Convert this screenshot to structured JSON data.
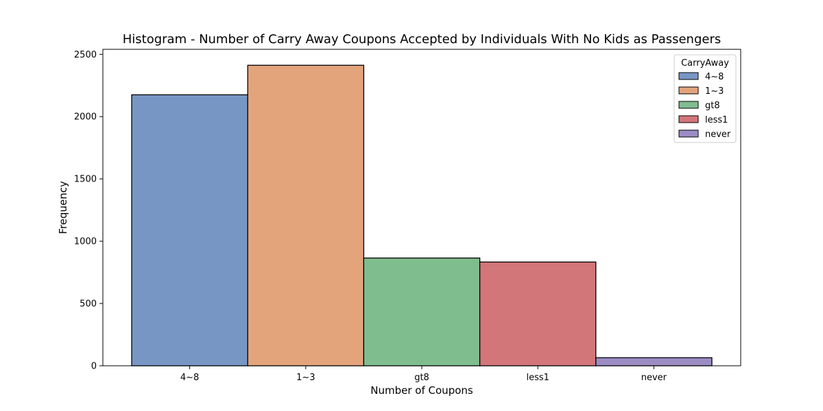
{
  "chart_data": {
    "type": "bar",
    "title": "Histogram - Number of Carry Away Coupons Accepted by Individuals With No Kids as Passengers",
    "xlabel": "Number of Coupons",
    "ylabel": "Frequency",
    "categories": [
      "4~8",
      "1~3",
      "gt8",
      "less1",
      "never"
    ],
    "values": [
      2175,
      2412,
      865,
      833,
      65
    ],
    "colors": [
      "#7896c4",
      "#e3a47c",
      "#80bd8e",
      "#d2767a",
      "#9c8cc4"
    ],
    "ylim": [
      0,
      2540
    ],
    "yticks": [
      0,
      500,
      1000,
      1500,
      2000,
      2500
    ],
    "grid": false,
    "legend": {
      "title": "CarryAway",
      "placement": "top-right",
      "entries": [
        "4~8",
        "1~3",
        "gt8",
        "less1",
        "never"
      ]
    }
  }
}
